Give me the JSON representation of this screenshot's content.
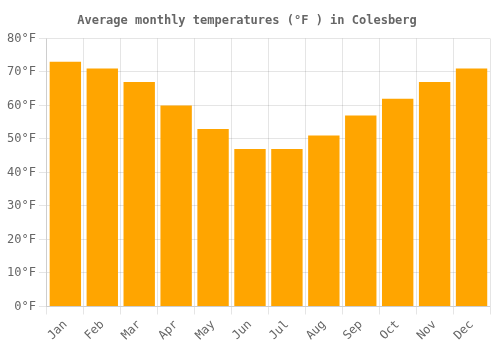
{
  "chart_data": {
    "type": "bar",
    "title": "Average monthly temperatures (°F ) in Colesberg",
    "categories": [
      "Jan",
      "Feb",
      "Mar",
      "Apr",
      "May",
      "Jun",
      "Jul",
      "Aug",
      "Sep",
      "Oct",
      "Nov",
      "Dec"
    ],
    "values": [
      73,
      71,
      67,
      60,
      53,
      47,
      47,
      51,
      57,
      62,
      67,
      71
    ],
    "color": "#FFA500",
    "ylim": [
      0,
      80
    ],
    "yticks": [
      {
        "value": 0,
        "label": "0°F"
      },
      {
        "value": 10,
        "label": "10°F"
      },
      {
        "value": 20,
        "label": "20°F"
      },
      {
        "value": 30,
        "label": "30°F"
      },
      {
        "value": 40,
        "label": "40°F"
      },
      {
        "value": 50,
        "label": "50°F"
      },
      {
        "value": 60,
        "label": "60°F"
      },
      {
        "value": 70,
        "label": "70°F"
      },
      {
        "value": 80,
        "label": "80°F"
      }
    ],
    "grid": true
  }
}
